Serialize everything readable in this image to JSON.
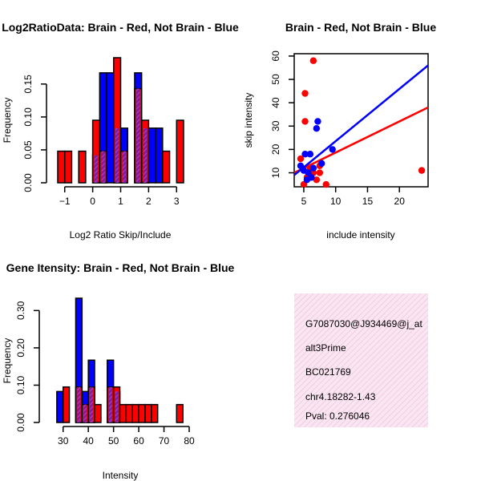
{
  "colors": {
    "brain": "#ff0000",
    "not_brain": "#0000ff",
    "overlap_hatch": "#a020f0",
    "info_bg": "#f8d8ec",
    "pval_text": "#cc0000"
  },
  "chart_data": [
    {
      "type": "bar",
      "title": "Log2RatioData: Brain - Red, Not Brain - Blue",
      "xlabel": "Log2 Ratio Skip/Include",
      "ylabel": "Frequency",
      "xlim": [
        -1.25,
        3.25
      ],
      "ylim": [
        0,
        0.19
      ],
      "xticks": [
        -1,
        0,
        1,
        2,
        3
      ],
      "xtick_labels": [
        "−1",
        "0",
        "1",
        "2",
        "3"
      ],
      "yticks": [
        0,
        0.05,
        0.1,
        0.15
      ],
      "ytick_labels": [
        "0.00",
        "0.05",
        "0.10",
        "0.15"
      ],
      "bin_width": 0.25,
      "series": [
        {
          "name": "Not Brain",
          "color": "not_brain",
          "bins": [
            [
              -1.0,
              0.0
            ],
            [
              -0.75,
              0.0
            ],
            [
              -0.5,
              0.0
            ],
            [
              -0.25,
              0.0
            ],
            [
              0.0,
              0.042
            ],
            [
              0.25,
              0.167
            ],
            [
              0.5,
              0.167
            ],
            [
              0.75,
              0.083
            ],
            [
              1.0,
              0.083
            ],
            [
              1.25,
              0.0
            ],
            [
              1.5,
              0.167
            ],
            [
              1.75,
              0.083
            ],
            [
              2.0,
              0.083
            ],
            [
              2.25,
              0.083
            ],
            [
              2.5,
              0.0
            ],
            [
              2.75,
              0.0
            ],
            [
              3.0,
              0.0
            ]
          ]
        },
        {
          "name": "Brain",
          "color": "brain",
          "bins": [
            [
              -1.25,
              0.048
            ],
            [
              -1.0,
              0.048
            ],
            [
              -0.75,
              0.0
            ],
            [
              -0.5,
              0.048
            ],
            [
              -0.25,
              0.0
            ],
            [
              0.0,
              0.095
            ],
            [
              0.25,
              0.048
            ],
            [
              0.5,
              0.0
            ],
            [
              0.75,
              0.19
            ],
            [
              1.0,
              0.048
            ],
            [
              1.25,
              0.0
            ],
            [
              1.5,
              0.143
            ],
            [
              1.75,
              0.095
            ],
            [
              2.0,
              0.0
            ],
            [
              2.25,
              0.0
            ],
            [
              2.5,
              0.048
            ],
            [
              2.75,
              0.0
            ],
            [
              3.0,
              0.095
            ]
          ]
        }
      ]
    },
    {
      "type": "scatter",
      "title": "Brain - Red, Not Brain - Blue",
      "xlabel": "include intensity",
      "ylabel": "skip intensity",
      "xlim": [
        3.5,
        24.5
      ],
      "ylim": [
        4,
        61
      ],
      "xticks": [
        5,
        10,
        15,
        20
      ],
      "yticks": [
        10,
        20,
        30,
        40,
        50,
        60
      ],
      "series": [
        {
          "name": "Brain",
          "color": "brain",
          "points": [
            [
              4.5,
              16
            ],
            [
              5.0,
              5
            ],
            [
              5.2,
              32
            ],
            [
              5.2,
              44
            ],
            [
              5.5,
              8
            ],
            [
              6.0,
              9
            ],
            [
              6.0,
              12
            ],
            [
              6.5,
              10
            ],
            [
              6.5,
              58
            ],
            [
              7.0,
              7
            ],
            [
              7.5,
              13
            ],
            [
              7.5,
              10
            ],
            [
              8.5,
              5
            ],
            [
              23.5,
              11
            ]
          ],
          "fit": {
            "x0": 3.5,
            "y0": 10,
            "x1": 24.5,
            "y1": 38
          }
        },
        {
          "name": "Not Brain",
          "color": "not_brain",
          "points": [
            [
              4.5,
              13
            ],
            [
              5.0,
              11
            ],
            [
              5.2,
              18
            ],
            [
              5.5,
              7
            ],
            [
              5.7,
              10
            ],
            [
              6.0,
              18
            ],
            [
              6.2,
              8
            ],
            [
              6.5,
              12
            ],
            [
              7.0,
              29
            ],
            [
              7.2,
              32
            ],
            [
              7.8,
              14
            ],
            [
              9.5,
              20
            ]
          ],
          "fit": {
            "x0": 3.5,
            "y0": 9,
            "x1": 24.5,
            "y1": 56
          }
        }
      ]
    },
    {
      "type": "bar",
      "title": "Gene Itensity: Brain - Red, Not Brain - Blue",
      "xlabel": "Intensity",
      "ylabel": "Frequency",
      "xlim": [
        25,
        80
      ],
      "ylim": [
        0,
        0.333
      ],
      "xticks": [
        30,
        40,
        50,
        60,
        70,
        80
      ],
      "yticks": [
        0,
        0.1,
        0.2,
        0.3
      ],
      "ytick_labels": [
        "0.00",
        "0.10",
        "0.20",
        "0.30"
      ],
      "bin_width": 2.5,
      "series": [
        {
          "name": "Not Brain",
          "color": "not_brain",
          "bins": [
            [
              27.5,
              0.083
            ],
            [
              30.0,
              0.0
            ],
            [
              32.5,
              0.0
            ],
            [
              35.0,
              0.333
            ],
            [
              37.5,
              0.083
            ],
            [
              40.0,
              0.167
            ],
            [
              42.5,
              0.0
            ],
            [
              45.0,
              0.0
            ],
            [
              47.5,
              0.167
            ],
            [
              50.0,
              0.083
            ],
            [
              52.5,
              0.0
            ]
          ]
        },
        {
          "name": "Brain",
          "color": "brain",
          "bins": [
            [
              27.5,
              0.0
            ],
            [
              30.0,
              0.095
            ],
            [
              32.5,
              0.0
            ],
            [
              35.0,
              0.095
            ],
            [
              37.5,
              0.048
            ],
            [
              40.0,
              0.095
            ],
            [
              42.5,
              0.048
            ],
            [
              45.0,
              0.0
            ],
            [
              47.5,
              0.095
            ],
            [
              50.0,
              0.095
            ],
            [
              52.5,
              0.048
            ],
            [
              55.0,
              0.048
            ],
            [
              57.5,
              0.048
            ],
            [
              60.0,
              0.048
            ],
            [
              62.5,
              0.048
            ],
            [
              65.0,
              0.048
            ],
            [
              67.5,
              0.0
            ],
            [
              70.0,
              0.0
            ],
            [
              72.5,
              0.0
            ],
            [
              75.0,
              0.048
            ]
          ]
        }
      ]
    }
  ],
  "info_panel": {
    "lines": [
      "G7087030@J934469@j_at",
      "alt3Prime",
      "BC021769",
      "chr4.18282-1.43"
    ],
    "pval": "Pval: 0.276046"
  }
}
